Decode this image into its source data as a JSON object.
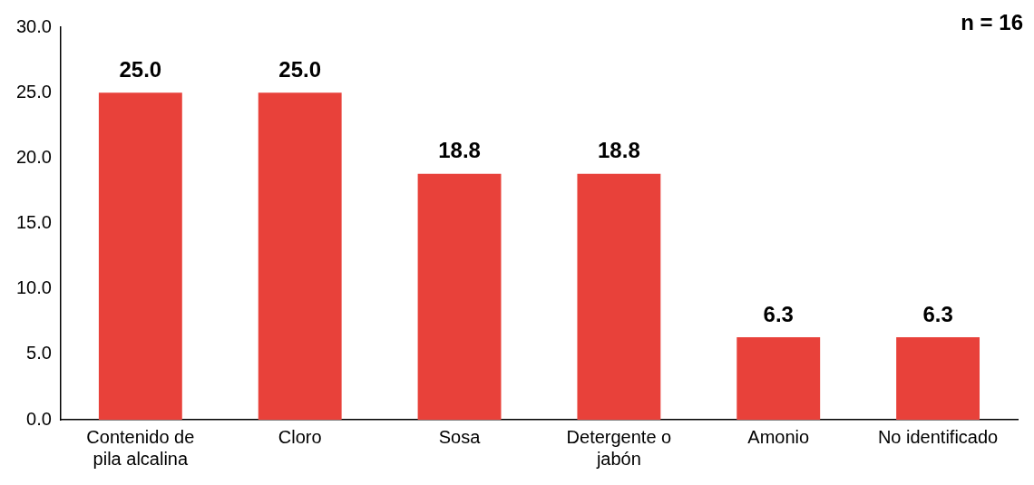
{
  "chart_data": {
    "type": "bar",
    "categories": [
      "Contenido de pila alcalina",
      "Cloro",
      "Sosa",
      "Detergente o jabón",
      "Amonio",
      "No identificado"
    ],
    "values": [
      25.0,
      25.0,
      18.8,
      18.8,
      6.3,
      6.3
    ],
    "value_labels": [
      "25.0",
      "25.0",
      "18.8",
      "18.8",
      "6.3",
      "6.3"
    ],
    "color": "#e8413a",
    "ylim": [
      0,
      30
    ],
    "yticks": [
      {
        "value": 0,
        "label": "0.0"
      },
      {
        "value": 5,
        "label": "5.0"
      },
      {
        "value": 10,
        "label": "10.0"
      },
      {
        "value": 15,
        "label": "15.0"
      },
      {
        "value": 20,
        "label": "20.0"
      },
      {
        "value": 25,
        "label": "25.0"
      },
      {
        "value": 30,
        "label": "30.0"
      }
    ],
    "grid": false,
    "legend": false,
    "annotations": [
      "n = 16"
    ]
  }
}
